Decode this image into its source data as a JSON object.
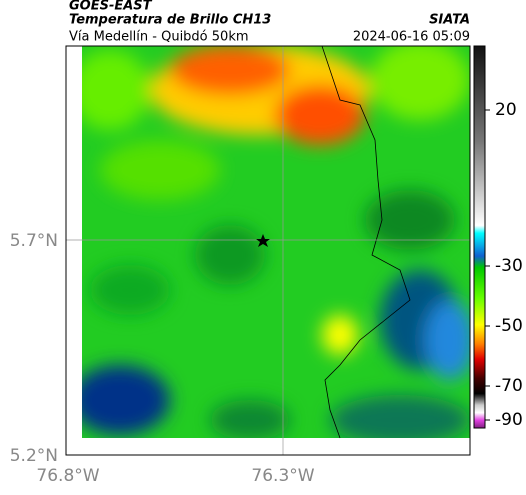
{
  "header": {
    "satellite": "GOES-EAST",
    "product": "Temperatura de Brillo CH13",
    "source": "SIATA",
    "region": "Vía Medellín - Quibdó 50km",
    "datetime": "2024-06-16 05:09"
  },
  "map": {
    "lat_labels": [
      "5.7°N",
      "5.2°N"
    ],
    "lon_labels": [
      "76.8°W",
      "76.3°W"
    ]
  },
  "colorbar": {
    "ticks": [
      20,
      -30,
      -50,
      -70,
      -90
    ]
  }
}
